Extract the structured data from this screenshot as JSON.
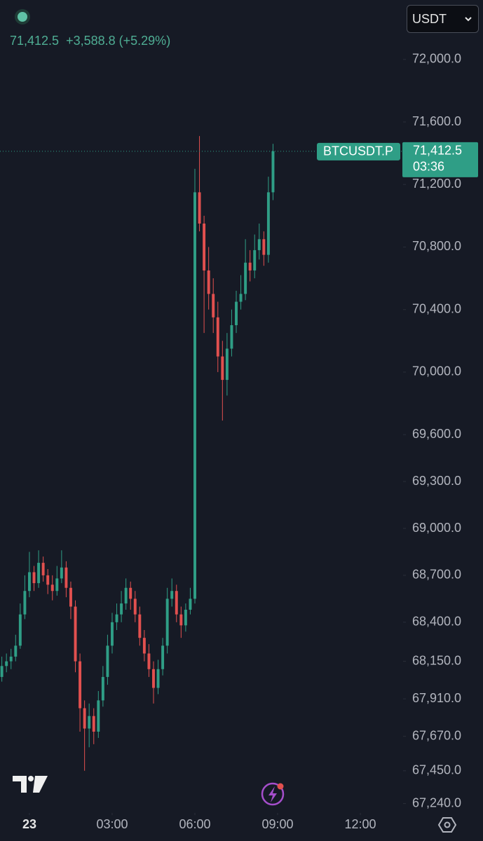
{
  "chart_data": {
    "type": "candlestick",
    "legend_value": "71,412.5",
    "legend_change": "+3,588.8 (+5.29%)",
    "currency": "USDT",
    "symbol": "BTCUSDT.P",
    "last_price": {
      "value": 71412.5,
      "label": "71,412.5"
    },
    "countdown": "03:36",
    "up_color": "#2f9e86",
    "down_color": "#e2504f",
    "x": [
      -60,
      -50,
      -40,
      -30,
      -20,
      -10,
      0,
      10,
      20,
      30,
      40,
      50,
      60,
      70,
      80,
      90,
      100,
      110,
      120,
      130,
      140,
      150,
      160,
      170,
      180,
      190,
      200,
      210,
      220,
      230,
      240,
      250,
      260,
      270,
      280,
      290,
      300,
      310,
      320,
      330,
      340,
      350,
      360,
      370,
      380,
      390,
      400,
      410,
      420,
      430,
      440,
      450,
      460,
      470,
      480,
      490,
      500,
      510,
      520,
      530
    ],
    "open": [
      68050,
      68120,
      68150,
      68180,
      68250,
      68450,
      68600,
      68720,
      68650,
      68780,
      68700,
      68640,
      68600,
      68680,
      68750,
      68620,
      68500,
      68150,
      67850,
      67720,
      67800,
      67700,
      67900,
      68050,
      68250,
      68400,
      68450,
      68520,
      68620,
      68550,
      68450,
      68300,
      68200,
      68100,
      67980,
      68100,
      68250,
      68550,
      68600,
      68450,
      68380,
      68480,
      68550,
      71150,
      70950,
      70650,
      70500,
      70350,
      70100,
      69950,
      70150,
      70300,
      70450,
      70500,
      70700,
      70650,
      70780,
      70850,
      70750,
      71150
    ],
    "high": [
      68180,
      68200,
      68230,
      68320,
      68520,
      68700,
      68850,
      68760,
      68860,
      68820,
      68740,
      68700,
      68760,
      68860,
      68790,
      68660,
      68540,
      68200,
      67900,
      67880,
      67850,
      67960,
      68120,
      68320,
      68460,
      68520,
      68600,
      68680,
      68660,
      68600,
      68500,
      68350,
      68260,
      68150,
      68160,
      68300,
      68620,
      68680,
      68640,
      68500,
      68520,
      68620,
      71300,
      71510,
      71000,
      70800,
      70600,
      70450,
      70200,
      70250,
      70400,
      70520,
      70620,
      70850,
      70780,
      70880,
      70950,
      70900,
      71250,
      71460
    ],
    "low": [
      68020,
      68080,
      68100,
      68150,
      68230,
      68420,
      68560,
      68600,
      68620,
      68660,
      68580,
      68540,
      68570,
      68650,
      68560,
      68420,
      68080,
      67700,
      67450,
      67600,
      67620,
      67660,
      67860,
      68000,
      68200,
      68350,
      68400,
      68480,
      68480,
      68400,
      68250,
      68150,
      68050,
      67880,
      67940,
      68060,
      68200,
      68500,
      68400,
      68300,
      68340,
      68450,
      68520,
      70900,
      70250,
      70400,
      70250,
      70000,
      69690,
      69850,
      70100,
      70250,
      70400,
      70460,
      70580,
      70600,
      70720,
      70680,
      70700,
      71100
    ],
    "close": [
      68120,
      68150,
      68180,
      68250,
      68450,
      68600,
      68720,
      68650,
      68780,
      68700,
      68640,
      68600,
      68680,
      68750,
      68620,
      68500,
      68150,
      67850,
      67720,
      67800,
      67700,
      67900,
      68050,
      68250,
      68400,
      68450,
      68520,
      68620,
      68550,
      68450,
      68300,
      68200,
      68100,
      67980,
      68100,
      68250,
      68550,
      68600,
      68450,
      68380,
      68480,
      68550,
      71150,
      70950,
      70650,
      70500,
      70350,
      70100,
      69950,
      70150,
      70300,
      70450,
      70500,
      70700,
      70650,
      70780,
      70850,
      70750,
      71150,
      71412.5
    ],
    "xlim": [
      -64,
      813
    ],
    "xticks": [
      {
        "value": 0,
        "label": "23"
      },
      {
        "value": 180,
        "label": "03:00"
      },
      {
        "value": 360,
        "label": "06:00"
      },
      {
        "value": 540,
        "label": "09:00"
      },
      {
        "value": 720,
        "label": "12:00"
      }
    ],
    "ylim": [
      67180,
      72380
    ],
    "yticks": [
      {
        "value": 72000,
        "label": "72,000.0"
      },
      {
        "value": 71600,
        "label": "71,600.0"
      },
      {
        "value": 71200,
        "label": "71,200.0"
      },
      {
        "value": 70800,
        "label": "70,800.0"
      },
      {
        "value": 70400,
        "label": "70,400.0"
      },
      {
        "value": 70000,
        "label": "70,000.0"
      },
      {
        "value": 69600,
        "label": "69,600.0"
      },
      {
        "value": 69300,
        "label": "69,300.0"
      },
      {
        "value": 69000,
        "label": "69,000.0"
      },
      {
        "value": 68700,
        "label": "68,700.0"
      },
      {
        "value": 68400,
        "label": "68,400.0"
      },
      {
        "value": 68150,
        "label": "68,150.0"
      },
      {
        "value": 67910,
        "label": "67,910.0"
      },
      {
        "value": 67670,
        "label": "67,670.0"
      },
      {
        "value": 67450,
        "label": "67,450.0"
      },
      {
        "value": 67240,
        "label": "67,240.0"
      }
    ]
  }
}
